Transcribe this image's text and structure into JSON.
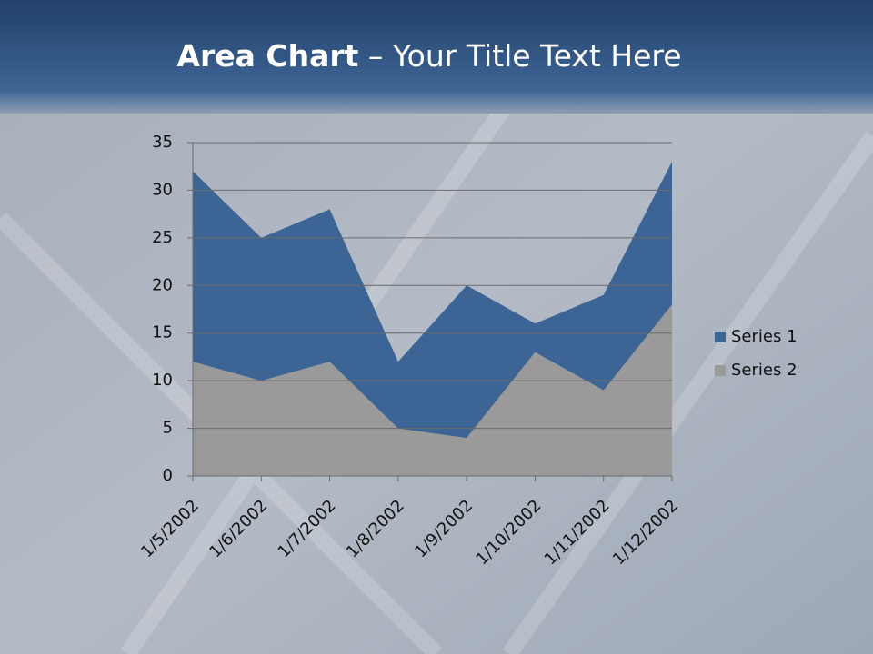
{
  "chart_data": {
    "type": "area",
    "title_bold": "Area Chart",
    "title_rest": "– Your Title Text Here",
    "categories": [
      "1/5/2002",
      "1/6/2002",
      "1/7/2002",
      "1/8/2002",
      "1/9/2002",
      "1/10/2002",
      "1/11/2002",
      "1/12/2002"
    ],
    "series": [
      {
        "name": "Series 1",
        "color": "#3c6494",
        "values": [
          32,
          25,
          28,
          12,
          20,
          16,
          19,
          33
        ]
      },
      {
        "name": "Series 2",
        "color": "#9a9a9a",
        "values": [
          12,
          10,
          12,
          5,
          4,
          13,
          9,
          18
        ]
      }
    ],
    "ylim": [
      0,
      35
    ],
    "yticks": [
      0,
      5,
      10,
      15,
      20,
      25,
      30,
      35
    ],
    "grid": true,
    "legend": "right"
  }
}
